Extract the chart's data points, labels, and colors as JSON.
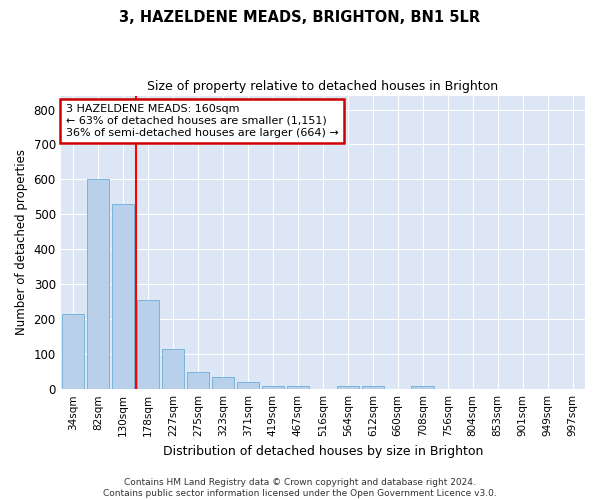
{
  "title1": "3, HAZELDENE MEADS, BRIGHTON, BN1 5LR",
  "title2": "Size of property relative to detached houses in Brighton",
  "xlabel": "Distribution of detached houses by size in Brighton",
  "ylabel": "Number of detached properties",
  "footnote1": "Contains HM Land Registry data © Crown copyright and database right 2024.",
  "footnote2": "Contains public sector information licensed under the Open Government Licence v3.0.",
  "bar_labels": [
    "34sqm",
    "82sqm",
    "130sqm",
    "178sqm",
    "227sqm",
    "275sqm",
    "323sqm",
    "371sqm",
    "419sqm",
    "467sqm",
    "516sqm",
    "564sqm",
    "612sqm",
    "660sqm",
    "708sqm",
    "756sqm",
    "804sqm",
    "853sqm",
    "901sqm",
    "949sqm",
    "997sqm"
  ],
  "bar_values": [
    215,
    600,
    530,
    255,
    115,
    50,
    35,
    20,
    10,
    10,
    0,
    10,
    10,
    0,
    10,
    0,
    0,
    0,
    0,
    0,
    0
  ],
  "bar_color": "#b8d0ea",
  "bar_edge_color": "#6baed6",
  "plot_bg_color": "#dce6f5",
  "grid_color": "#ffffff",
  "red_line_x": 2.5,
  "annotation_text_line1": "3 HAZELDENE MEADS: 160sqm",
  "annotation_text_line2": "← 63% of detached houses are smaller (1,151)",
  "annotation_text_line3": "36% of semi-detached houses are larger (664) →",
  "annotation_box_color": "#cc0000",
  "ylim": [
    0,
    840
  ],
  "yticks": [
    0,
    100,
    200,
    300,
    400,
    500,
    600,
    700,
    800
  ]
}
